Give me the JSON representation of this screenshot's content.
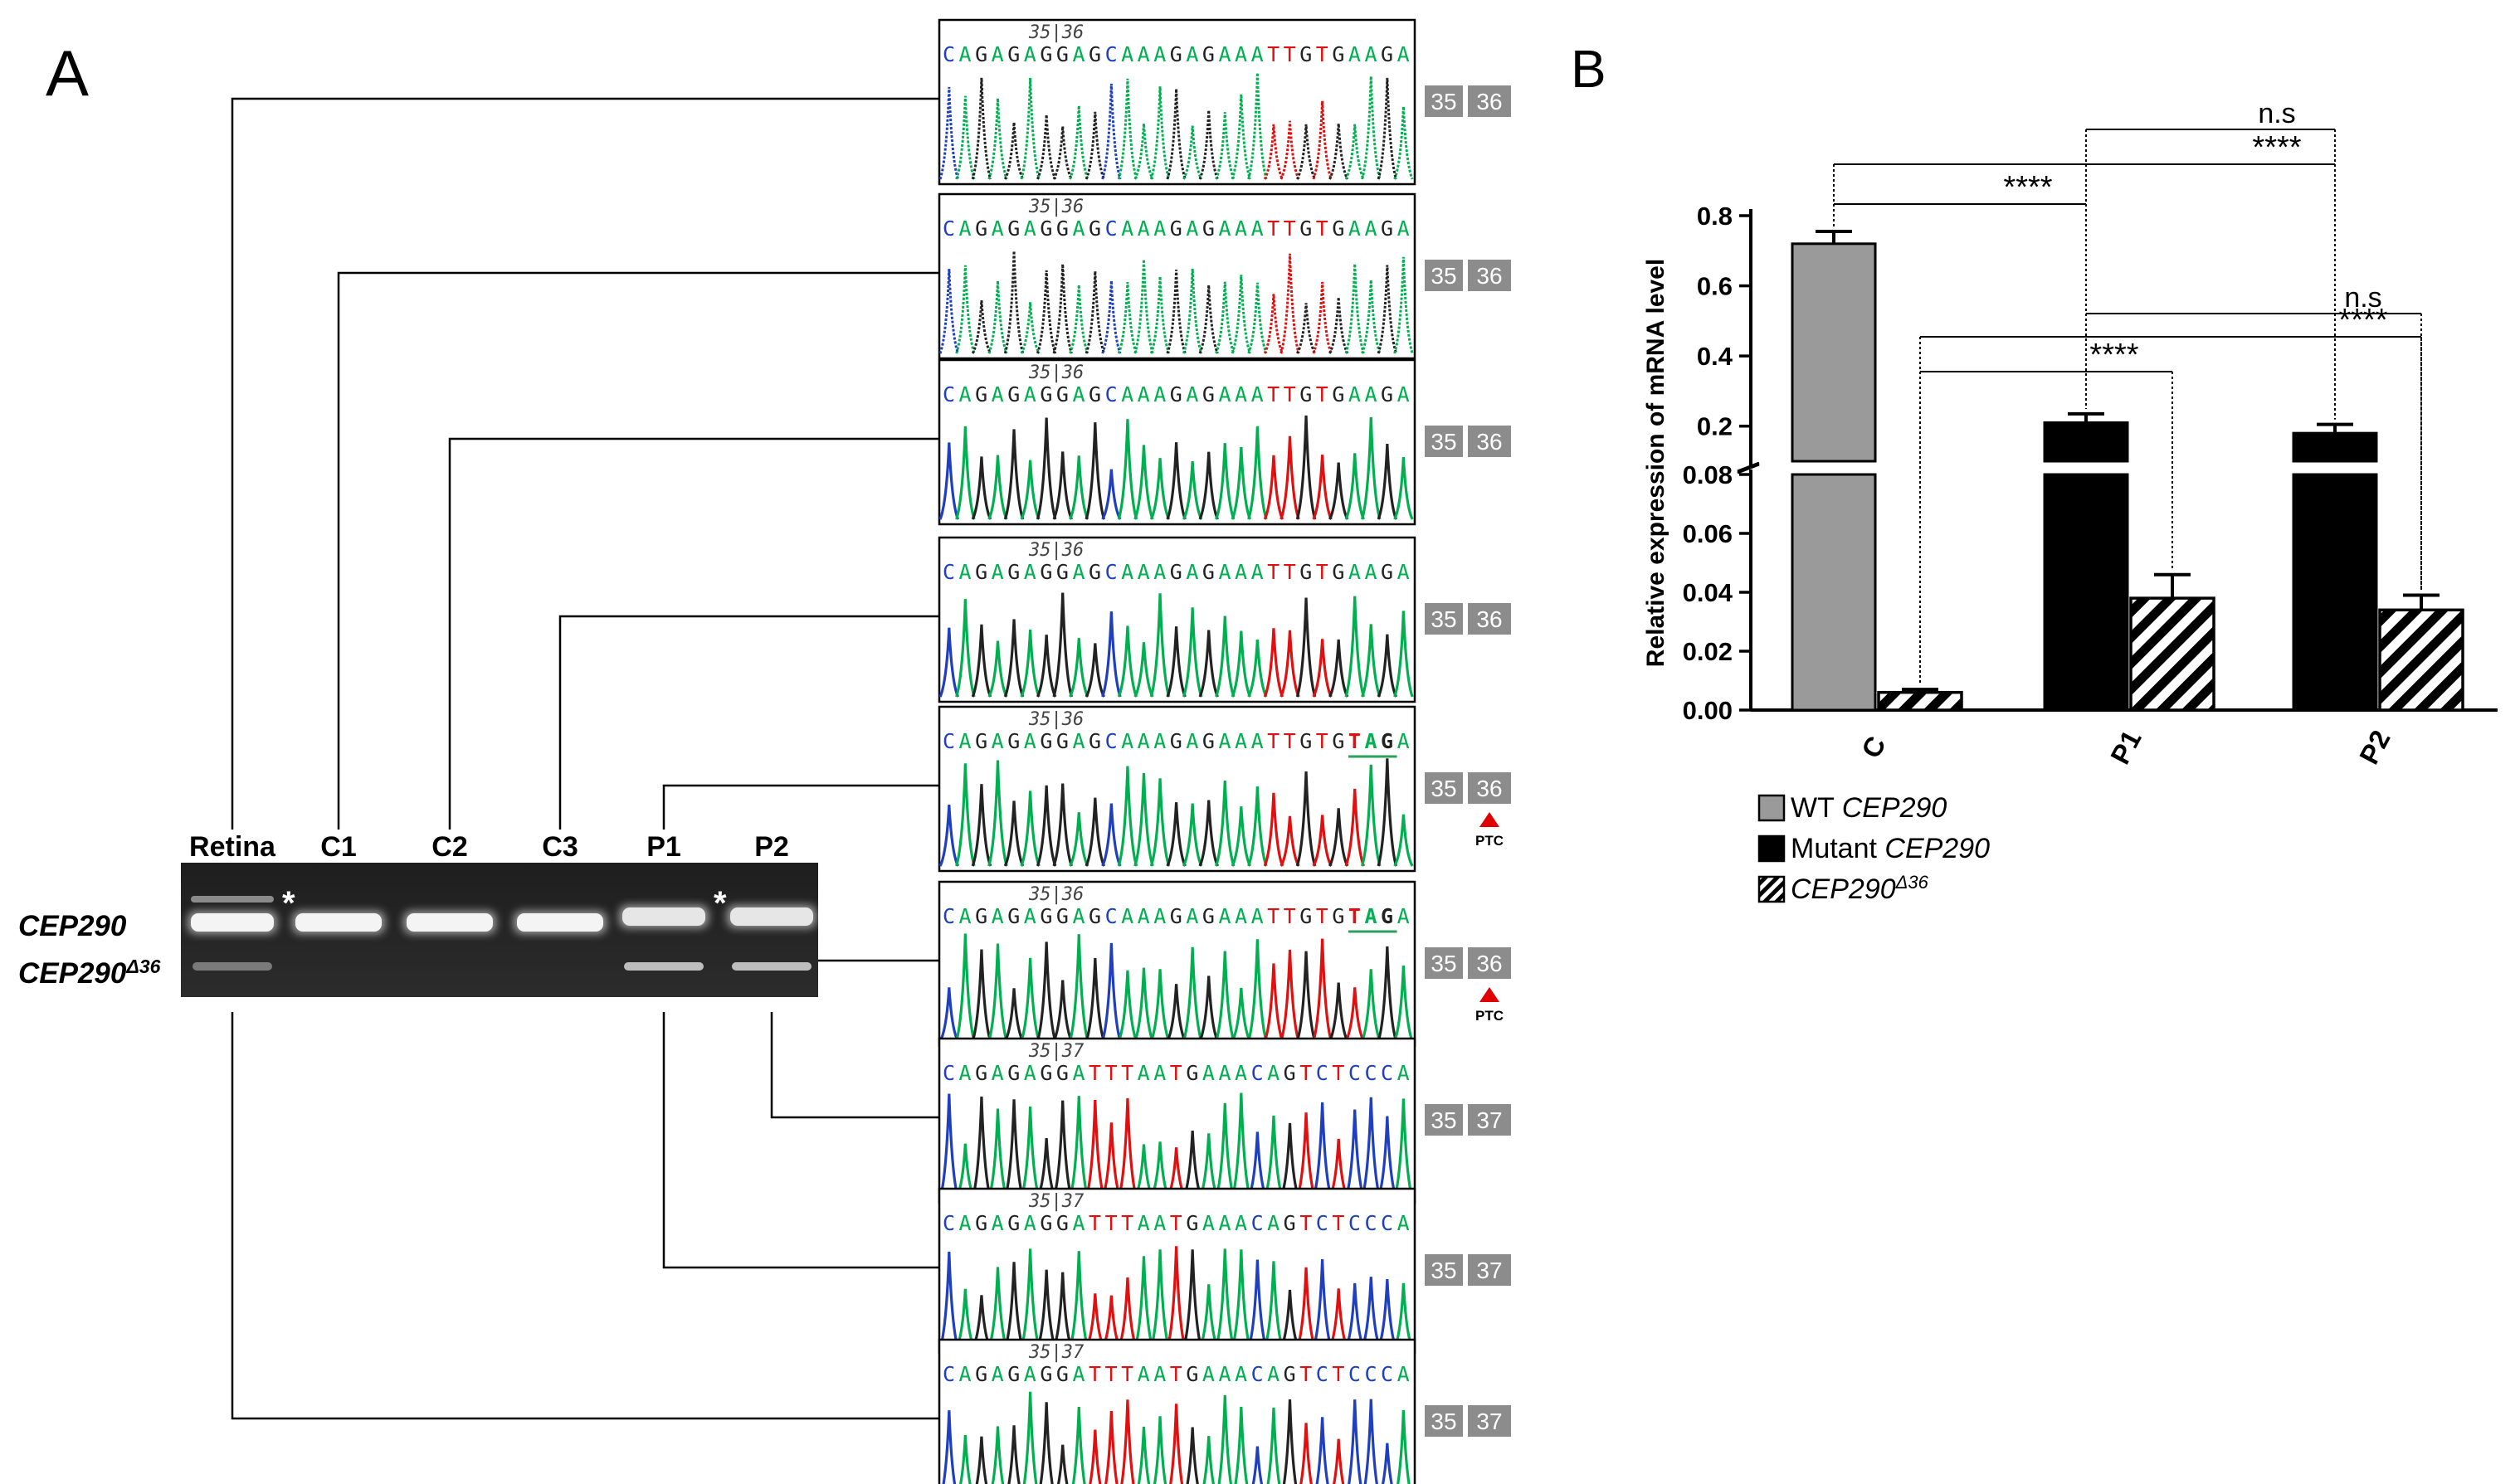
{
  "panel_a": {
    "label": "A",
    "gel": {
      "lanes": [
        "Retina",
        "C1",
        "C2",
        "C3",
        "P1",
        "P2"
      ],
      "band_labels": {
        "full": "CEP290",
        "deleted_base": "CEP290",
        "deleted_sup": "Δ36"
      },
      "asterisk": "*"
    },
    "traces": [
      {
        "junction": "35|36",
        "seq": "CAGAGAGGAGCAAAGAGAAATTGTGAAGA",
        "exon_left": "35",
        "exon_right": "36",
        "ptc": ""
      },
      {
        "junction": "35|36",
        "seq": "CAGAGAGGAGCAAAGAGAAATTGTGAAGA",
        "exon_left": "35",
        "exon_right": "36",
        "ptc": ""
      },
      {
        "junction": "35|36",
        "seq": "CAGAGAGGAGCAAAGAGAAATTGTGAAGA",
        "exon_left": "35",
        "exon_right": "36",
        "ptc": ""
      },
      {
        "junction": "35|36",
        "seq": "CAGAGAGGAGCAAAGAGAAATTGTGAAGA",
        "exon_left": "35",
        "exon_right": "36",
        "ptc": ""
      },
      {
        "junction": "35|36",
        "seq": "CAGAGAGGAGCAAAGAGAAATTGTGTAGA",
        "exon_left": "35",
        "exon_right": "36",
        "ptc": "PTC"
      },
      {
        "junction": "35|36",
        "seq": "CAGAGAGGAGCAAAGAGAAATTGTGTAGA",
        "exon_left": "35",
        "exon_right": "36",
        "ptc": "PTC"
      },
      {
        "junction": "35|37",
        "seq": "CAGAGAGGATTTAATGAAACAGTCTCCCA",
        "exon_left": "35",
        "exon_right": "37",
        "ptc": ""
      },
      {
        "junction": "35|37",
        "seq": "CAGAGAGGATTTAATGAAACAGTCTCCCA",
        "exon_left": "35",
        "exon_right": "37",
        "ptc": ""
      },
      {
        "junction": "35|37",
        "seq": "CAGAGAGGATTTAATGAAACAGTCTCCCA",
        "exon_left": "35",
        "exon_right": "37",
        "ptc": ""
      }
    ],
    "trace_links": [
      "Retina",
      "C1",
      "C2",
      "C3",
      "P1",
      "P2",
      "P2",
      "P1",
      "Retina"
    ]
  },
  "colors": {
    "A": "#00b050",
    "C": "#1f3fbf",
    "G": "#222222",
    "T": "#e01010",
    "wt": "#9a9a9a",
    "mutant": "#000000",
    "exon_box": "#8c8c8c",
    "ptc": "#e00000"
  },
  "chart_data": {
    "type": "bar",
    "panel_label": "B",
    "categories": [
      "C",
      "P1",
      "P2"
    ],
    "series": [
      {
        "name": "WT CEP290",
        "name_base": "WT ",
        "name_gene": "CEP290",
        "name_sup": "",
        "pattern": "gray",
        "values": [
          0.72,
          null,
          null
        ],
        "errors": [
          0.035,
          null,
          null
        ]
      },
      {
        "name": "Mutant CEP290",
        "name_base": "Mutant ",
        "name_gene": "CEP290",
        "name_sup": "",
        "pattern": "black",
        "values": [
          null,
          0.21,
          0.18
        ],
        "errors": [
          null,
          0.025,
          0.025
        ]
      },
      {
        "name": "CEP290Δ36",
        "name_base": "",
        "name_gene": "CEP290",
        "name_sup": "Δ36",
        "pattern": "hatched",
        "values": [
          0.006,
          0.038,
          0.034
        ],
        "errors": [
          0.001,
          0.008,
          0.005
        ]
      }
    ],
    "ylabel": "Relative expression of mRNA level",
    "y_break": {
      "lower_range": [
        0,
        0.08
      ],
      "upper_range": [
        0.1,
        0.8
      ]
    },
    "yticks_lower": [
      "0.00",
      "0.02",
      "0.04",
      "0.06",
      "0.08"
    ],
    "yticks_upper": [
      "0.2",
      "0.4",
      "0.6",
      "0.8"
    ],
    "significance": [
      {
        "label": "n.s",
        "from": "P1 Mutant",
        "to": "P2 Mutant"
      },
      {
        "label": "****",
        "from": "C WT",
        "to": "P2 Mutant"
      },
      {
        "label": "****",
        "from": "C WT",
        "to": "P1 Mutant"
      },
      {
        "label": "n.s",
        "from": "P1 Mutant",
        "to": "P2 Δ36"
      },
      {
        "label": "****",
        "from": "C Δ36",
        "to": "P2 Δ36"
      },
      {
        "label": "****",
        "from": "C Δ36",
        "to": "P1 Δ36"
      }
    ]
  }
}
